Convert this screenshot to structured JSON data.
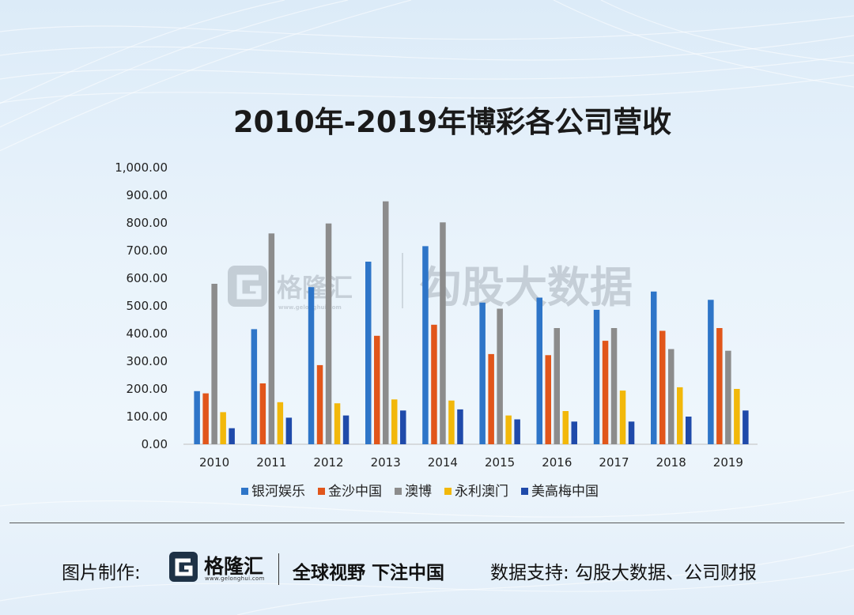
{
  "colors": {
    "galaxy": "#2e75c8",
    "sands": "#e1561b",
    "sjm": "#8c8c8c",
    "wynn": "#f2b80a",
    "mgm": "#1f4aaa"
  },
  "watermark": {
    "logo_icon": "gelonghui-g-icon",
    "brand_text": "格隆汇",
    "brand_url": "www.gelonghui.com",
    "partner_text": "勾股大数据"
  },
  "chart_data": {
    "type": "bar",
    "title": "2010年-2019年博彩各公司营收",
    "xlabel": "",
    "ylabel": "",
    "ylim": [
      0,
      1000
    ],
    "yticks": [
      "1,000.00",
      "900.00",
      "800.00",
      "700.00",
      "600.00",
      "500.00",
      "400.00",
      "300.00",
      "200.00",
      "100.00",
      "0.00"
    ],
    "ytick_values": [
      1000,
      900,
      800,
      700,
      600,
      500,
      400,
      300,
      200,
      100,
      0
    ],
    "grid": false,
    "legend_position": "bottom",
    "categories": [
      "2010",
      "2011",
      "2012",
      "2013",
      "2014",
      "2015",
      "2016",
      "2017",
      "2018",
      "2019"
    ],
    "series": [
      {
        "name": "银河娱乐",
        "color_key": "galaxy",
        "values": [
          192,
          416,
          568,
          660,
          716,
          512,
          530,
          486,
          552,
          522
        ]
      },
      {
        "name": "金沙中国",
        "color_key": "sands",
        "values": [
          184,
          220,
          286,
          392,
          432,
          326,
          322,
          374,
          410,
          420
        ]
      },
      {
        "name": "澳博",
        "color_key": "sjm",
        "values": [
          580,
          762,
          798,
          878,
          802,
          490,
          420,
          420,
          344,
          338
        ]
      },
      {
        "name": "永利澳门",
        "color_key": "wynn",
        "values": [
          116,
          152,
          148,
          162,
          158,
          104,
          120,
          194,
          206,
          200
        ]
      },
      {
        "name": "美高梅中国",
        "color_key": "mgm",
        "values": [
          58,
          96,
          104,
          122,
          126,
          90,
          82,
          82,
          100,
          122
        ]
      }
    ]
  },
  "footer": {
    "credit_label": "图片制作:",
    "brand_logo_icon": "gelonghui-g-icon",
    "brand_name": "格隆汇",
    "brand_url": "www.gelonghui.com",
    "slogan": "全球视野 下注中国",
    "data_support": "数据支持:  勾股大数据、公司财报"
  }
}
